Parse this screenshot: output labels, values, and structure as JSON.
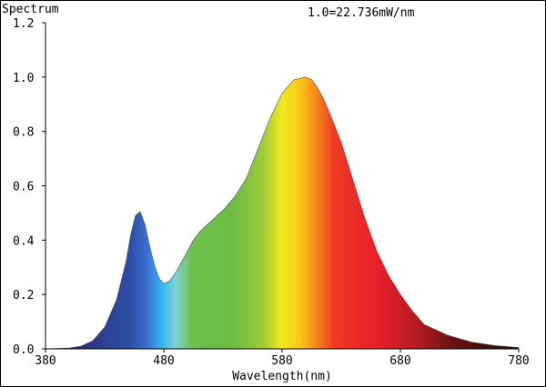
{
  "chart_data": {
    "type": "area",
    "title": "Spectrum",
    "annotation": "1.0=22.736mW/nm",
    "xlabel": "Wavelength(nm)",
    "ylabel": "",
    "xlim": [
      380,
      780
    ],
    "ylim": [
      0,
      1.2
    ],
    "x_ticks": [
      "380",
      "480",
      "580",
      "680",
      "780"
    ],
    "y_ticks": [
      "0.0",
      "0.2",
      "0.4",
      "0.6",
      "0.8",
      "1.0",
      "1.2"
    ],
    "grid": false,
    "fill": "wavelength spectrum colors",
    "series": [
      {
        "x": [
          380,
          400,
          410,
          420,
          430,
          440,
          448,
          452,
          456,
          460,
          464,
          468,
          472,
          476,
          480,
          485,
          490,
          495,
          500,
          505,
          510,
          515,
          520,
          530,
          540,
          550,
          560,
          570,
          580,
          590,
          600,
          605,
          610,
          615,
          620,
          630,
          640,
          650,
          660,
          670,
          680,
          690,
          700,
          720,
          740,
          760,
          780
        ],
        "values": [
          0.0,
          0.003,
          0.01,
          0.03,
          0.08,
          0.18,
          0.32,
          0.42,
          0.49,
          0.505,
          0.46,
          0.38,
          0.31,
          0.26,
          0.24,
          0.25,
          0.28,
          0.32,
          0.36,
          0.4,
          0.43,
          0.45,
          0.47,
          0.51,
          0.56,
          0.63,
          0.74,
          0.85,
          0.94,
          0.99,
          1.0,
          0.99,
          0.96,
          0.92,
          0.87,
          0.76,
          0.62,
          0.48,
          0.36,
          0.27,
          0.2,
          0.14,
          0.09,
          0.05,
          0.025,
          0.012,
          0.005
        ]
      }
    ]
  }
}
